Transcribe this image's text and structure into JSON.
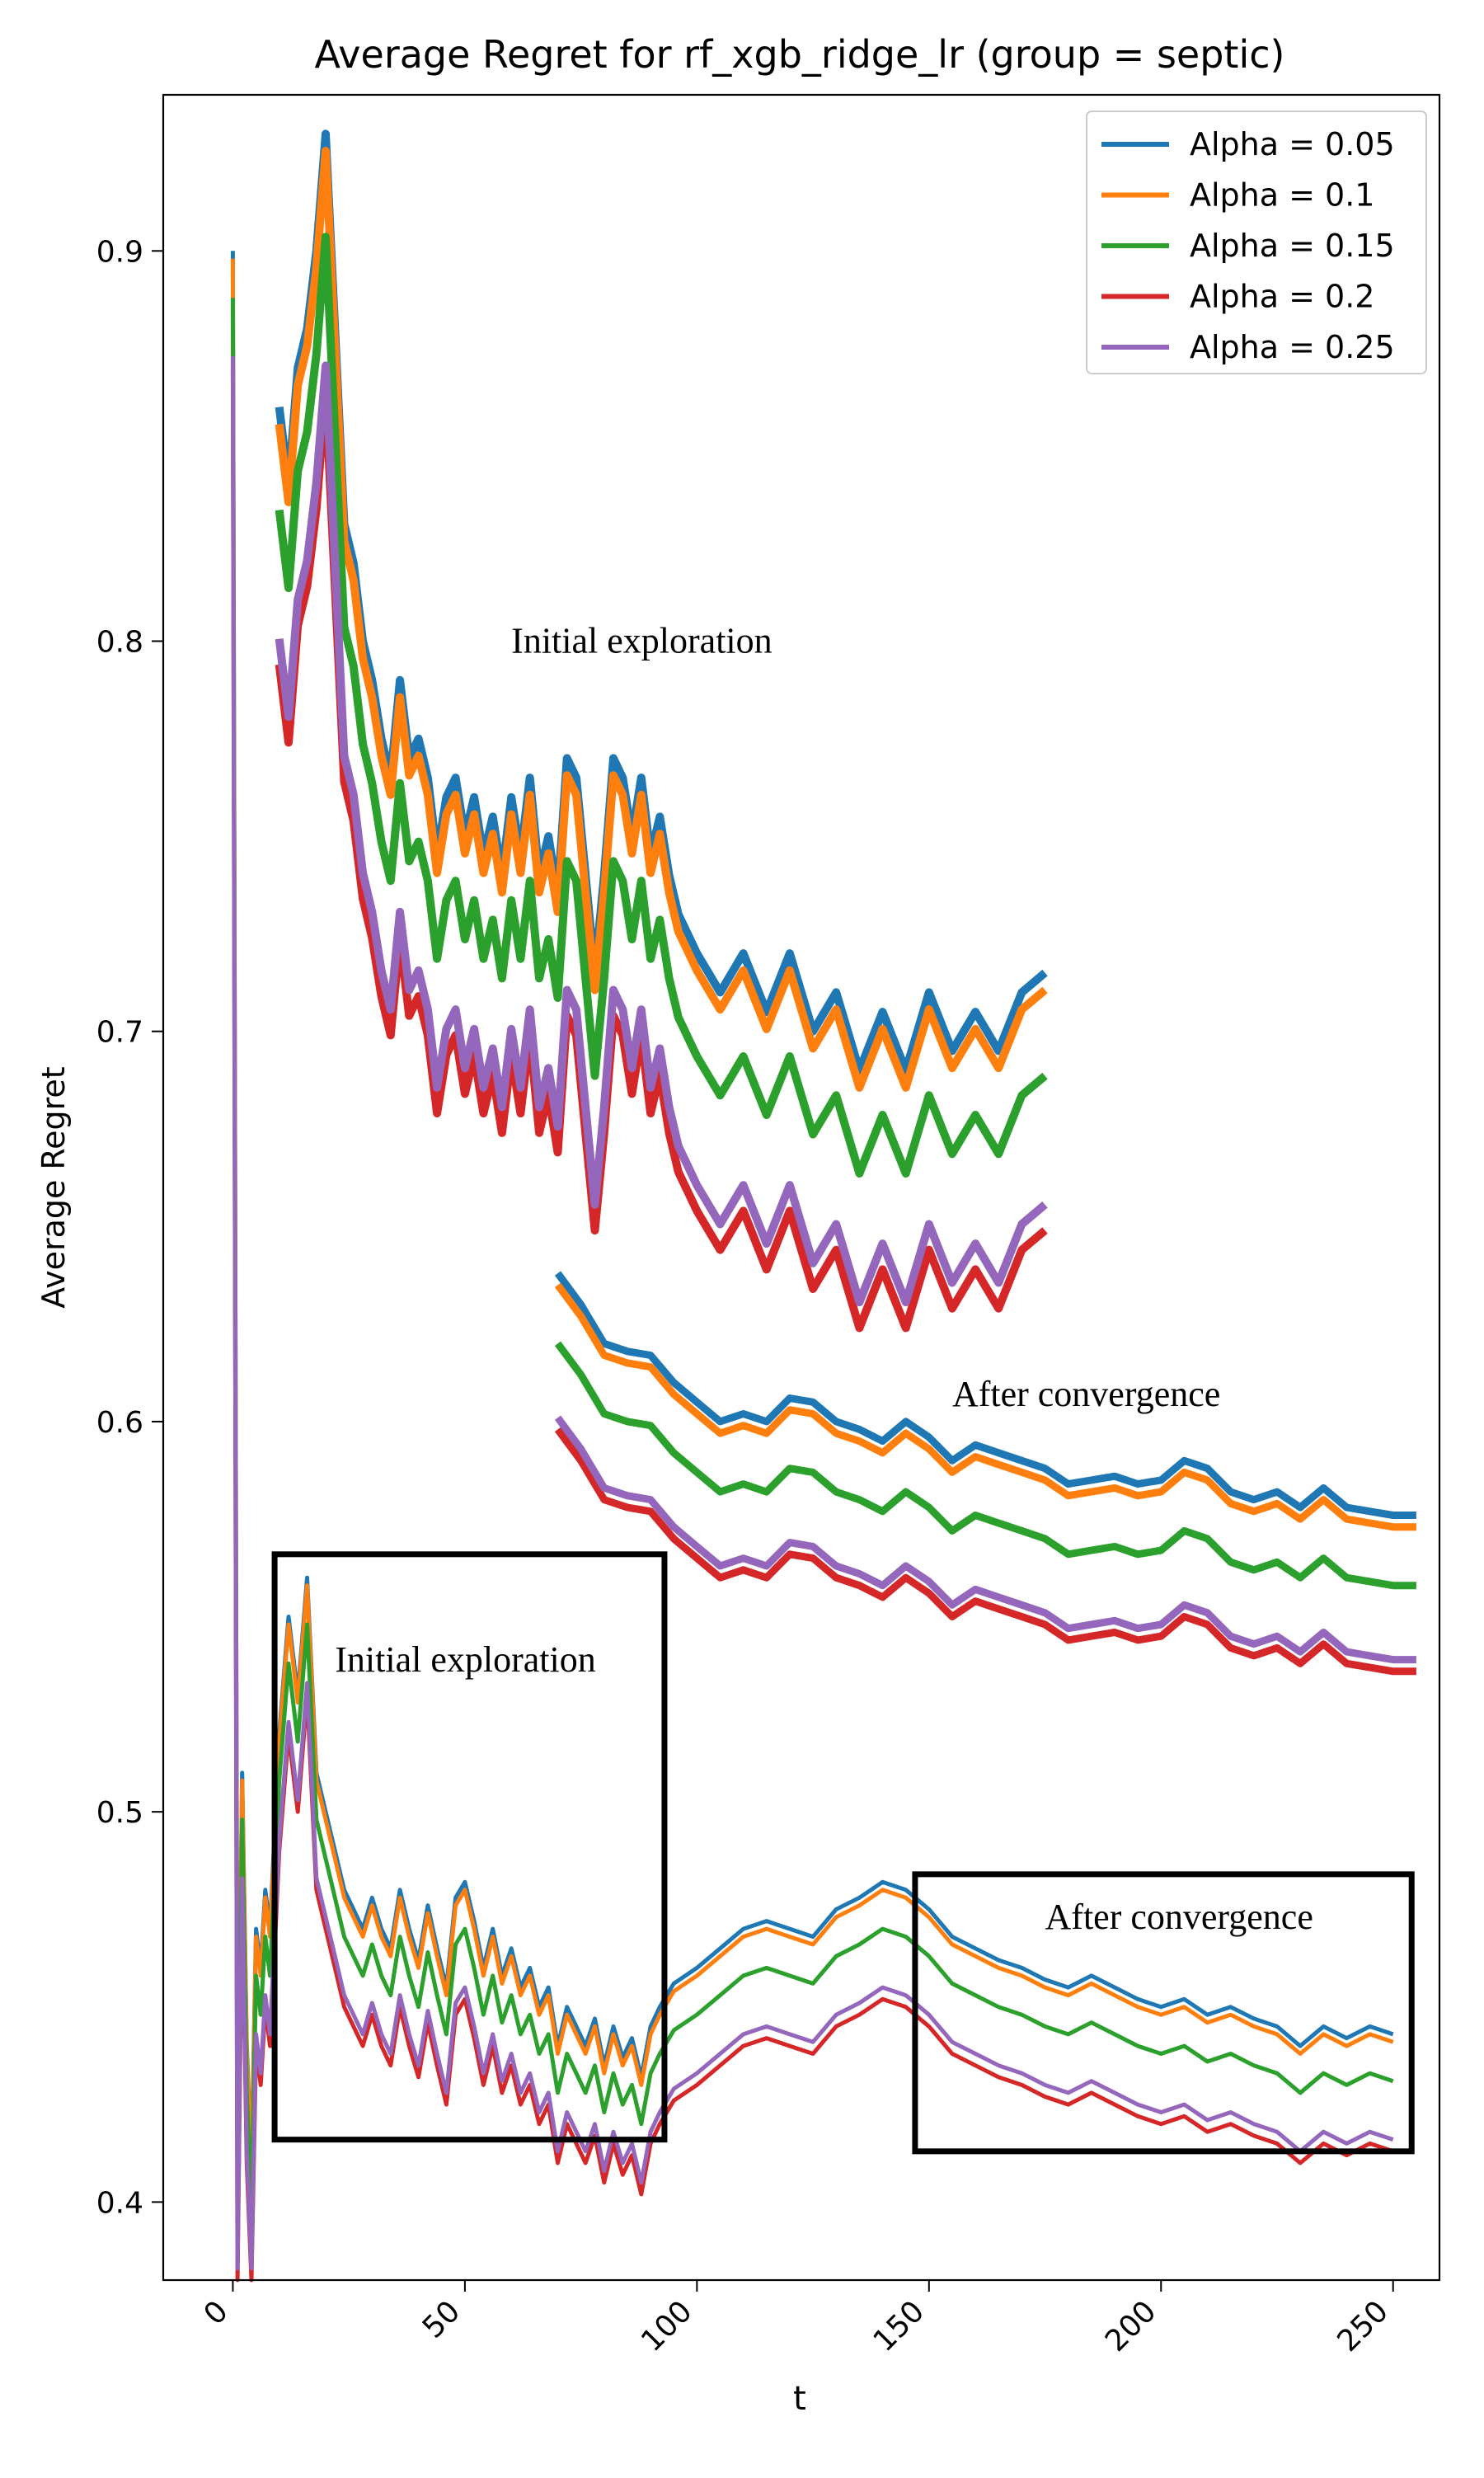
{
  "chart_data": {
    "type": "line",
    "title": "Average Regret for rf_xgb_ridge_lr (group = septic)",
    "xlabel": "t",
    "ylabel": "Average Regret",
    "xlim": [
      -15,
      260
    ],
    "ylim": [
      0.38,
      0.94
    ],
    "xticks": [
      0,
      50,
      100,
      150,
      200,
      250
    ],
    "xtick_labels": [
      "0",
      "50",
      "100",
      "150",
      "200",
      "250"
    ],
    "yticks": [
      0.4,
      0.5,
      0.6,
      0.7,
      0.8,
      0.9
    ],
    "ytick_labels": [
      "0.4",
      "0.5",
      "0.6",
      "0.7",
      "0.8",
      "0.9"
    ],
    "grid": false,
    "legend_position": "top-right",
    "series": [
      {
        "name": "Alpha = 0.05",
        "color": "#1f77b4",
        "offset": 0.0
      },
      {
        "name": "Alpha = 0.1",
        "color": "#ff7f0e",
        "offset": -0.002
      },
      {
        "name": "Alpha = 0.15",
        "color": "#2ca02c",
        "offset": -0.012
      },
      {
        "name": "Alpha = 0.2",
        "color": "#d62728",
        "offset": -0.03
      },
      {
        "name": "Alpha = 0.25",
        "color": "#9467bd",
        "offset": -0.027
      }
    ],
    "base_curve": {
      "t": [
        0,
        1,
        2,
        3,
        4,
        5,
        6,
        7,
        8,
        10,
        12,
        14,
        16,
        18,
        20,
        22,
        24,
        26,
        28,
        30,
        32,
        34,
        36,
        38,
        40,
        42,
        44,
        46,
        48,
        50,
        52,
        54,
        56,
        58,
        60,
        62,
        64,
        66,
        68,
        70,
        72,
        74,
        76,
        78,
        80,
        82,
        84,
        86,
        88,
        90,
        92,
        95,
        100,
        105,
        110,
        115,
        120,
        125,
        130,
        135,
        140,
        145,
        150,
        155,
        160,
        165,
        170,
        175,
        180,
        185,
        190,
        195,
        200,
        205,
        210,
        215,
        220,
        225,
        230,
        235,
        240,
        245,
        250
      ],
      "regret": [
        0.9,
        0.41,
        0.51,
        0.44,
        0.41,
        0.47,
        0.46,
        0.48,
        0.47,
        0.52,
        0.55,
        0.53,
        0.56,
        0.51,
        0.5,
        0.49,
        0.48,
        0.475,
        0.47,
        0.478,
        0.47,
        0.465,
        0.48,
        0.47,
        0.462,
        0.476,
        0.465,
        0.455,
        0.478,
        0.482,
        0.472,
        0.46,
        0.47,
        0.458,
        0.465,
        0.455,
        0.46,
        0.45,
        0.455,
        0.44,
        0.45,
        0.445,
        0.44,
        0.447,
        0.435,
        0.445,
        0.437,
        0.442,
        0.432,
        0.445,
        0.45,
        0.456,
        0.46,
        0.465,
        0.47,
        0.472,
        0.47,
        0.468,
        0.475,
        0.478,
        0.482,
        0.48,
        0.475,
        0.468,
        0.465,
        0.462,
        0.46,
        0.457,
        0.455,
        0.458,
        0.455,
        0.452,
        0.45,
        0.452,
        0.448,
        0.45,
        0.447,
        0.445,
        0.44,
        0.445,
        0.442,
        0.445,
        0.443
      ]
    },
    "upper_curve": {
      "t": [
        10,
        12,
        14,
        16,
        18,
        20,
        22,
        24,
        26,
        28,
        30,
        32,
        34,
        36,
        38,
        40,
        42,
        44,
        46,
        48,
        50,
        52,
        54,
        56,
        58,
        60,
        62,
        64,
        66,
        68,
        70,
        72,
        74,
        76,
        78,
        80,
        82,
        84,
        86,
        88,
        90,
        92,
        94,
        96,
        100,
        105,
        110,
        115,
        120,
        125,
        130,
        135,
        140,
        145,
        150,
        155,
        160,
        165,
        170,
        175
      ],
      "regret": [
        0.86,
        0.84,
        0.87,
        0.88,
        0.9,
        0.93,
        0.88,
        0.83,
        0.82,
        0.8,
        0.79,
        0.775,
        0.765,
        0.79,
        0.77,
        0.775,
        0.765,
        0.745,
        0.76,
        0.765,
        0.75,
        0.76,
        0.745,
        0.755,
        0.74,
        0.76,
        0.745,
        0.765,
        0.74,
        0.75,
        0.735,
        0.77,
        0.765,
        0.74,
        0.715,
        0.74,
        0.77,
        0.765,
        0.75,
        0.765,
        0.745,
        0.755,
        0.74,
        0.73,
        0.72,
        0.71,
        0.72,
        0.705,
        0.72,
        0.7,
        0.71,
        0.69,
        0.705,
        0.69,
        0.71,
        0.695,
        0.705,
        0.695,
        0.71,
        0.715
      ]
    },
    "mid_curve": {
      "t": [
        70,
        75,
        80,
        85,
        90,
        95,
        100,
        105,
        110,
        115,
        120,
        125,
        130,
        135,
        140,
        145,
        150,
        155,
        160,
        165,
        170,
        175,
        180,
        185,
        190,
        195,
        200,
        205,
        210,
        215,
        220,
        225,
        230,
        235,
        240,
        245,
        250,
        255
      ],
      "regret": [
        0.638,
        0.63,
        0.62,
        0.618,
        0.617,
        0.61,
        0.605,
        0.6,
        0.602,
        0.6,
        0.606,
        0.605,
        0.6,
        0.598,
        0.595,
        0.6,
        0.596,
        0.59,
        0.594,
        0.592,
        0.59,
        0.588,
        0.584,
        0.585,
        0.586,
        0.584,
        0.585,
        0.59,
        0.588,
        0.582,
        0.58,
        0.582,
        0.578,
        0.583,
        0.578,
        0.577,
        0.576,
        0.576
      ]
    },
    "mid_curve_offsets": [
      0.0,
      -0.003,
      -0.018,
      -0.04,
      -0.037
    ],
    "annotations": [
      {
        "text": "Initial exploration",
        "t": 60,
        "regret": 0.797
      },
      {
        "text": "After convergence",
        "t": 155,
        "regret": 0.604
      },
      {
        "text": "Initial exploration",
        "t": 22,
        "regret": 0.536
      },
      {
        "text": "After convergence",
        "t": 175,
        "regret": 0.47
      }
    ],
    "boxes": [
      {
        "t0": 9,
        "t1": 93,
        "regret_low": 0.416,
        "regret_high": 0.566
      },
      {
        "t0": 147,
        "t1": 254,
        "regret_low": 0.413,
        "regret_high": 0.484
      }
    ]
  }
}
